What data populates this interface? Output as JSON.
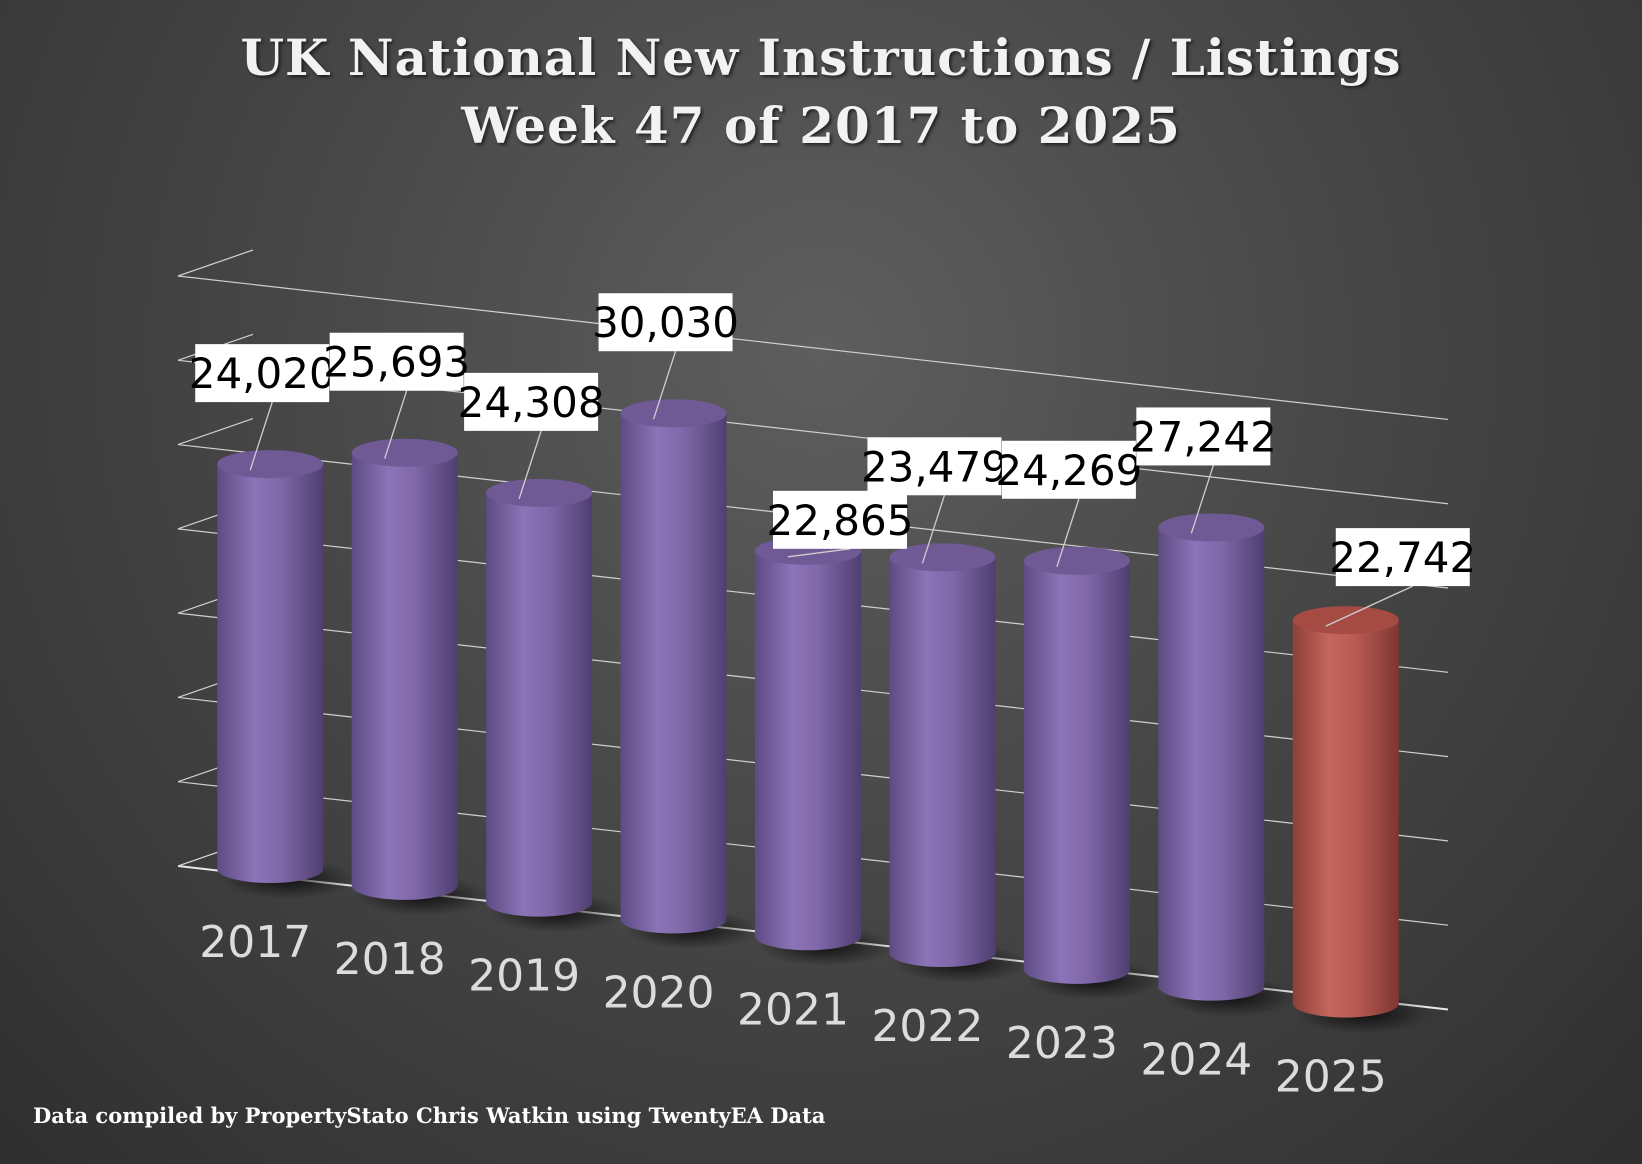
{
  "title": "UK National New Instructions / Listings",
  "subtitle": "Week 47 of 2017 to 2025",
  "footer": "Data compiled by PropertyStato Chris Watkin using TwentyEA Data",
  "colors": {
    "bar": "#7f67a8",
    "highlight": "#b85a52",
    "background": "#474747"
  },
  "chart_data": {
    "type": "bar",
    "style": "3d-cylinder",
    "title": "UK National New Instructions / Listings",
    "subtitle": "Week 47 of 2017 to 2025",
    "categories": [
      "2017",
      "2018",
      "2019",
      "2020",
      "2021",
      "2022",
      "2023",
      "2024",
      "2025"
    ],
    "values": [
      24020,
      25693,
      24308,
      30030,
      22865,
      23479,
      24269,
      27242,
      22742
    ],
    "value_labels": [
      "24,020",
      "25,693",
      "24,308",
      "30,030",
      "22,865",
      "23,479",
      "24,269",
      "27,242",
      "22,742"
    ],
    "highlight_category": "2025",
    "ylim": [
      0,
      35000
    ],
    "grid": true,
    "legend": "none"
  }
}
